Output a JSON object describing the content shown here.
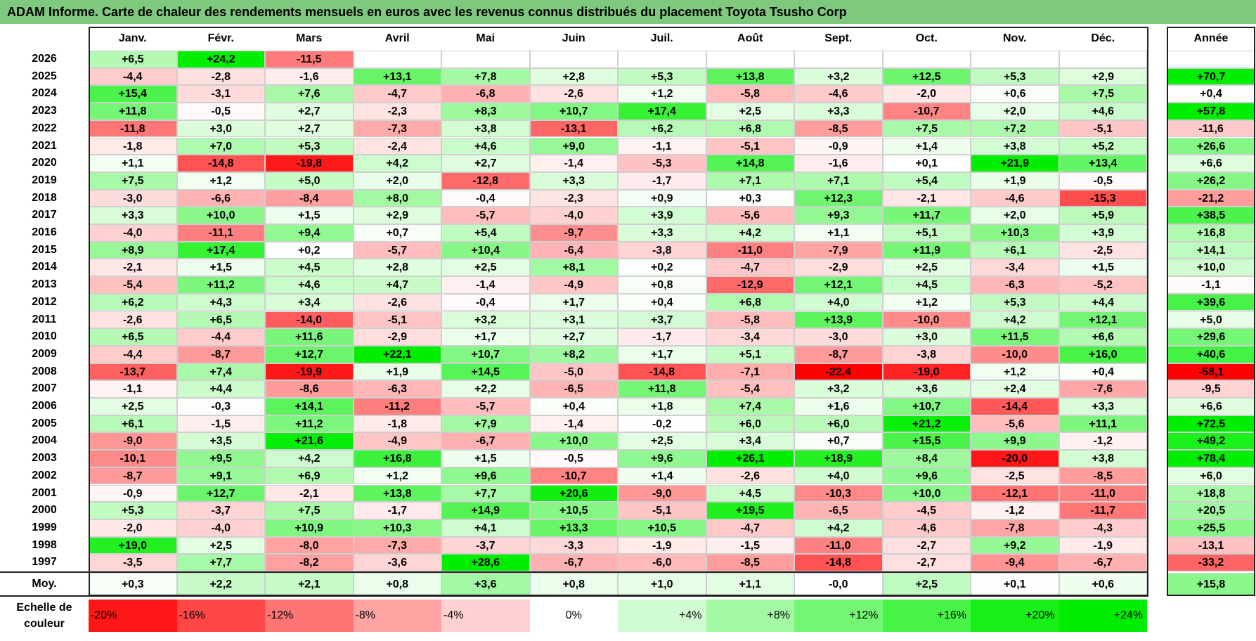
{
  "title": "ADAM Informe. Carte de chaleur des rendements mensuels en euros avec les revenus connus distribués du placement Toyota Tsusho Corp",
  "colors": {
    "title_bg": "#7fc97f",
    "negative": "#ff0000",
    "neutral": "#ffffff",
    "positive": "#00ee00"
  },
  "chart_data": {
    "type": "heatmap",
    "title": "ADAM Informe. Carte de chaleur des rendements mensuels en euros avec les revenus connus distribués du placement Toyota Tsusho Corp",
    "months": [
      "Janv.",
      "Févr.",
      "Mars",
      "Avril",
      "Mai",
      "Juin",
      "Juil.",
      "Août",
      "Sept.",
      "Oct.",
      "Nov.",
      "Déc."
    ],
    "year_header": "Année",
    "rows": [
      {
        "year": "2026",
        "values": [
          "+6,5",
          "+24,2",
          "-11,5",
          "",
          "",
          "",
          "",
          "",
          "",
          "",
          "",
          ""
        ],
        "annual": ""
      },
      {
        "year": "2025",
        "values": [
          "-4,4",
          "-2,8",
          "-1,6",
          "+13,1",
          "+7,8",
          "+2,8",
          "+5,3",
          "+13,8",
          "+3,2",
          "+12,5",
          "+5,3",
          "+2,9"
        ],
        "annual": "+70,7"
      },
      {
        "year": "2024",
        "values": [
          "+15,4",
          "-3,1",
          "+7,6",
          "-4,7",
          "-6,8",
          "-2,6",
          "+1,2",
          "-5,8",
          "-4,6",
          "-2,0",
          "+0,6",
          "+7,5"
        ],
        "annual": "+0,4"
      },
      {
        "year": "2023",
        "values": [
          "+11,8",
          "-0,5",
          "+2,7",
          "-2,3",
          "+8,3",
          "+10,7",
          "+17,4",
          "+2,5",
          "+3,3",
          "-10,7",
          "+2,0",
          "+4,6"
        ],
        "annual": "+57,8"
      },
      {
        "year": "2022",
        "values": [
          "-11,8",
          "+3,0",
          "+2,7",
          "-7,3",
          "+3,8",
          "-13,1",
          "+6,2",
          "+6,8",
          "-8,5",
          "+7,5",
          "+7,2",
          "-5,1"
        ],
        "annual": "-11,6"
      },
      {
        "year": "2021",
        "values": [
          "-1,8",
          "+7,0",
          "+5,3",
          "-2,4",
          "+4,6",
          "+9,0",
          "-1,1",
          "-5,1",
          "-0,9",
          "+1,4",
          "+3,8",
          "+5,2"
        ],
        "annual": "+26,6"
      },
      {
        "year": "2020",
        "values": [
          "+1,1",
          "-14,8",
          "-19,8",
          "+4,2",
          "+2,7",
          "-1,4",
          "-5,3",
          "+14,8",
          "-1,6",
          "+0,1",
          "+21,9",
          "+13,4"
        ],
        "annual": "+6,6"
      },
      {
        "year": "2019",
        "values": [
          "+7,5",
          "+1,2",
          "+5,0",
          "+2,0",
          "-12,8",
          "+3,3",
          "-1,7",
          "+7,1",
          "+7,1",
          "+5,4",
          "+1,9",
          "-0,5"
        ],
        "annual": "+26,2"
      },
      {
        "year": "2018",
        "values": [
          "-3,0",
          "-6,6",
          "-8,4",
          "+8,0",
          "-0,4",
          "-2,3",
          "+0,9",
          "+0,3",
          "+12,3",
          "-2,1",
          "-4,6",
          "-15,3"
        ],
        "annual": "-21,2"
      },
      {
        "year": "2017",
        "values": [
          "+3,3",
          "+10,0",
          "+1,5",
          "+2,9",
          "-5,7",
          "-4,0",
          "+3,9",
          "-5,6",
          "+9,3",
          "+11,7",
          "+2,0",
          "+5,9"
        ],
        "annual": "+38,5"
      },
      {
        "year": "2016",
        "values": [
          "-4,0",
          "-11,1",
          "+9,4",
          "+0,7",
          "+5,4",
          "-9,7",
          "+3,3",
          "+4,2",
          "+1,1",
          "+5,1",
          "+10,3",
          "+3,9"
        ],
        "annual": "+16,8"
      },
      {
        "year": "2015",
        "values": [
          "+8,9",
          "+17,4",
          "+0,2",
          "-5,7",
          "+10,4",
          "-6,4",
          "-3,8",
          "-11,0",
          "-7,9",
          "+11,9",
          "+6,1",
          "-2,5"
        ],
        "annual": "+14,1"
      },
      {
        "year": "2014",
        "values": [
          "-2,1",
          "+1,5",
          "+4,5",
          "+2,8",
          "+2,5",
          "+8,1",
          "+0,2",
          "-4,7",
          "-2,9",
          "+2,5",
          "-3,4",
          "+1,5"
        ],
        "annual": "+10,0"
      },
      {
        "year": "2013",
        "values": [
          "-5,4",
          "+11,2",
          "+4,6",
          "+4,7",
          "-1,4",
          "-4,9",
          "+0,8",
          "-12,9",
          "+12,1",
          "+4,5",
          "-6,3",
          "-5,2"
        ],
        "annual": "-1,1"
      },
      {
        "year": "2012",
        "values": [
          "+6,2",
          "+4,3",
          "+3,4",
          "-2,6",
          "-0,4",
          "+1,7",
          "+0,4",
          "+6,8",
          "+4,0",
          "+1,2",
          "+5,3",
          "+4,4"
        ],
        "annual": "+39,6"
      },
      {
        "year": "2011",
        "values": [
          "-2,6",
          "+6,5",
          "-14,0",
          "-5,1",
          "+3,2",
          "+3,1",
          "+3,7",
          "-5,8",
          "+13,9",
          "-10,0",
          "+4,2",
          "+12,1"
        ],
        "annual": "+5,0"
      },
      {
        "year": "2010",
        "values": [
          "+6,5",
          "-4,4",
          "+11,6",
          "-2,9",
          "+1,7",
          "+2,7",
          "-1,7",
          "-3,4",
          "-3,0",
          "+3,0",
          "+11,5",
          "+6,6"
        ],
        "annual": "+29,6"
      },
      {
        "year": "2009",
        "values": [
          "-4,4",
          "-8,7",
          "+12,7",
          "+22,1",
          "+10,7",
          "+8,2",
          "+1,7",
          "+5,1",
          "-8,7",
          "-3,8",
          "-10,0",
          "+16,0"
        ],
        "annual": "+40,6"
      },
      {
        "year": "2008",
        "values": [
          "-13,7",
          "+7,4",
          "-19,9",
          "+1,9",
          "+14,5",
          "-5,0",
          "-14,8",
          "-7,1",
          "-22,4",
          "-19,0",
          "+1,2",
          "+0,4"
        ],
        "annual": "-58,1"
      },
      {
        "year": "2007",
        "values": [
          "-1,1",
          "+4,4",
          "-8,6",
          "-6,3",
          "+2,2",
          "-6,5",
          "+11,8",
          "-5,4",
          "+3,2",
          "+3,6",
          "+2,4",
          "-7,6"
        ],
        "annual": "-9,5"
      },
      {
        "year": "2006",
        "values": [
          "+2,5",
          "-0,3",
          "+14,1",
          "-11,2",
          "-5,7",
          "+0,4",
          "+1,8",
          "+7,4",
          "+1,6",
          "+10,7",
          "-14,4",
          "+3,3"
        ],
        "annual": "+6,6"
      },
      {
        "year": "2005",
        "values": [
          "+6,1",
          "-1,5",
          "+11,2",
          "-1,8",
          "+7,9",
          "-1,4",
          "-0,2",
          "+6,0",
          "+6,0",
          "+21,2",
          "-5,6",
          "+11,1"
        ],
        "annual": "+72,5"
      },
      {
        "year": "2004",
        "values": [
          "-9,0",
          "+3,5",
          "+21,6",
          "-4,9",
          "-6,7",
          "+10,0",
          "+2,5",
          "+3,4",
          "+0,7",
          "+15,5",
          "+9,9",
          "-1,2"
        ],
        "annual": "+49,2"
      },
      {
        "year": "2003",
        "values": [
          "-10,1",
          "+9,5",
          "+4,2",
          "+16,8",
          "+1,5",
          "-0,5",
          "+9,6",
          "+26,1",
          "+18,9",
          "+8,4",
          "-20,0",
          "+3,8"
        ],
        "annual": "+78,4"
      },
      {
        "year": "2002",
        "values": [
          "-8,7",
          "+9,1",
          "+6,9",
          "+1,2",
          "+9,6",
          "-10,7",
          "+1,4",
          "-2,6",
          "+4,0",
          "+9,6",
          "-2,5",
          "-8,5"
        ],
        "annual": "+6,0"
      },
      {
        "year": "2001",
        "values": [
          "-0,9",
          "+12,7",
          "-2,1",
          "+13,8",
          "+7,7",
          "+20,6",
          "-9,0",
          "+4,5",
          "-10,3",
          "+10,0",
          "-12,1",
          "-11,0"
        ],
        "annual": "+18,8"
      },
      {
        "year": "2000",
        "values": [
          "+5,3",
          "-3,7",
          "+7,5",
          "-1,7",
          "+14,9",
          "+10,5",
          "-5,1",
          "+19,5",
          "-6,5",
          "-4,5",
          "-1,2",
          "-11,7"
        ],
        "annual": "+20,5"
      },
      {
        "year": "1999",
        "values": [
          "-2,0",
          "-4,0",
          "+10,9",
          "+10,3",
          "+4,1",
          "+13,3",
          "+10,5",
          "-4,7",
          "+4,2",
          "-4,6",
          "-7,8",
          "-4,3"
        ],
        "annual": "+25,5"
      },
      {
        "year": "1998",
        "values": [
          "+19,0",
          "+2,5",
          "-8,0",
          "-7,3",
          "-3,7",
          "-3,3",
          "-1,9",
          "-1,5",
          "-11,0",
          "-2,7",
          "+9,2",
          "-1,9"
        ],
        "annual": "-13,1"
      },
      {
        "year": "1997",
        "values": [
          "-3,5",
          "+7,7",
          "-8,2",
          "-3,6",
          "+28,6",
          "-6,7",
          "-6,0",
          "-8,5",
          "-14,8",
          "-2,7",
          "-9,4",
          "-6,7"
        ],
        "annual": "-33,2"
      }
    ],
    "average": {
      "label": "Moy.",
      "values": [
        "+0,3",
        "+2,2",
        "+2,1",
        "+0,8",
        "+3,6",
        "+0,8",
        "+1,0",
        "+1,1",
        "-0,0",
        "+2,5",
        "+0,1",
        "+0,6"
      ],
      "annual": "+15,8"
    },
    "scale": {
      "label": "Echelle de couleur",
      "entries": [
        "-20%",
        "-16%",
        "-12%",
        "-8%",
        "-4%",
        "0%",
        "+4%",
        "+8%",
        "+12%",
        "+16%",
        "+20%",
        "+24%"
      ]
    }
  }
}
